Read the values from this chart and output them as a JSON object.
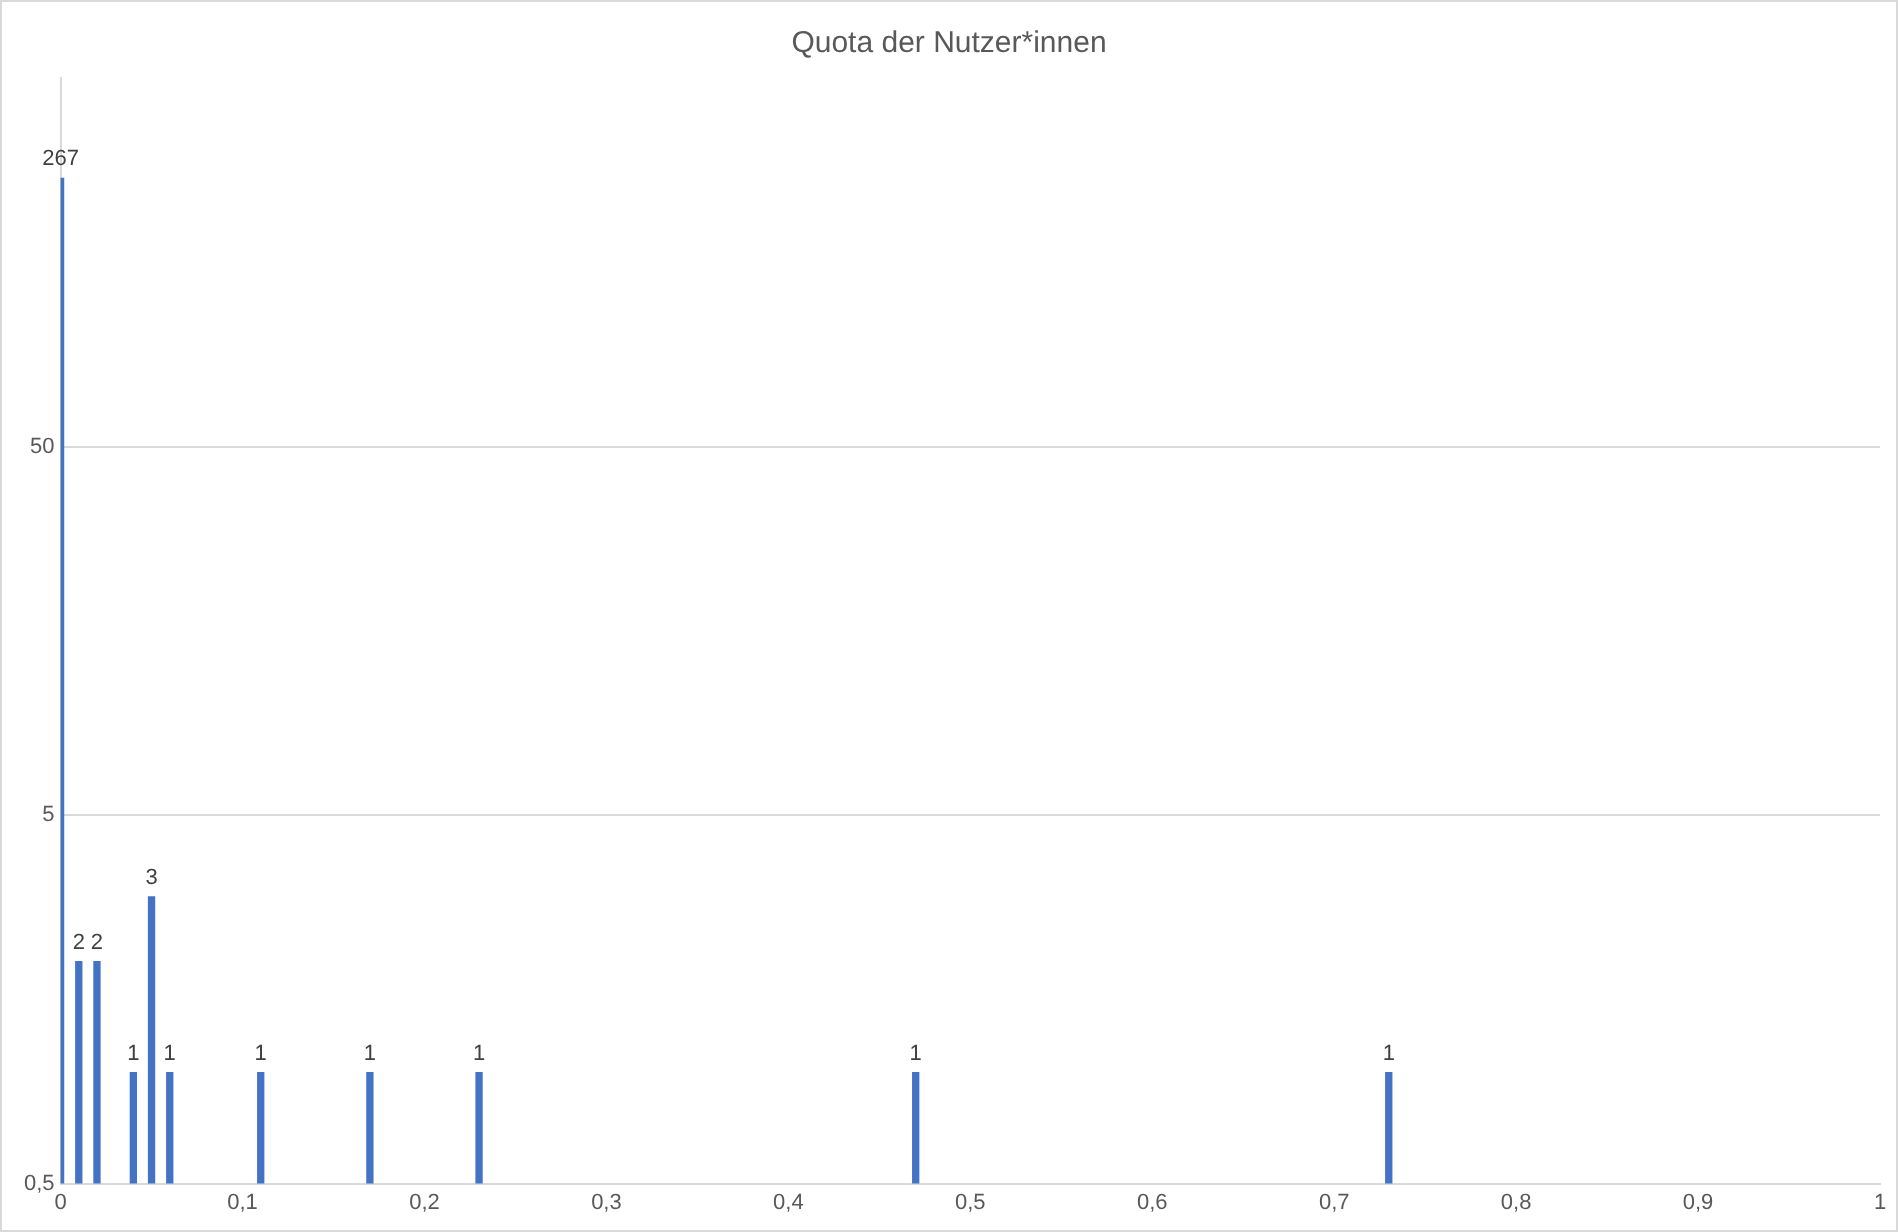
{
  "chart_data": {
    "type": "bar",
    "title": "Quota der Nutzer*innen",
    "x": [
      0,
      0.01,
      0.02,
      0.04,
      0.05,
      0.06,
      0.11,
      0.17,
      0.23,
      0.47,
      0.73
    ],
    "values": [
      267,
      2,
      2,
      1,
      3,
      1,
      1,
      1,
      1,
      1,
      1
    ],
    "color": "#4472c4",
    "data_labels": true,
    "log": "y",
    "grid": "y",
    "legend": false,
    "xlim": [
      0,
      1
    ],
    "xticks": [
      0,
      {
        "value": 0.1,
        "label": "0,1"
      },
      {
        "value": 0.2,
        "label": "0,2"
      },
      {
        "value": 0.3,
        "label": "0,3"
      },
      {
        "value": 0.4,
        "label": "0,4"
      },
      {
        "value": 0.5,
        "label": "0,5"
      },
      {
        "value": 0.6,
        "label": "0,6"
      },
      {
        "value": 0.7,
        "label": "0,7"
      },
      {
        "value": 0.8,
        "label": "0,8"
      },
      {
        "value": 0.9,
        "label": "0,9"
      },
      1
    ],
    "ylim": [
      0.5,
      500
    ],
    "yticks": [
      {
        "value": 0.5,
        "label": "0,5"
      },
      5,
      50
    ]
  }
}
